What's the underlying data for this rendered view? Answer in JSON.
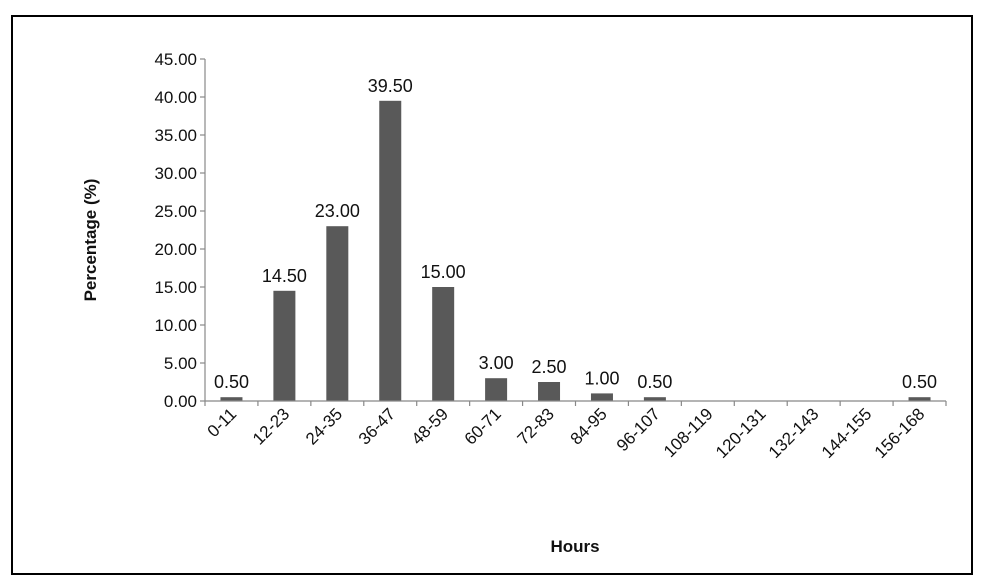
{
  "chart_data": {
    "type": "bar",
    "categories": [
      "0-11",
      "12-23",
      "24-35",
      "36-47",
      "48-59",
      "60-71",
      "72-83",
      "84-95",
      "96-107",
      "108-119",
      "120-131",
      "132-143",
      "144-155",
      "156-168"
    ],
    "values": [
      0.5,
      14.5,
      23.0,
      39.5,
      15.0,
      3.0,
      2.5,
      1.0,
      0.5,
      0,
      0,
      0,
      0,
      0.5
    ],
    "data_labels": [
      "0.50",
      "14.50",
      "23.00",
      "39.50",
      "15.00",
      "3.00",
      "2.50",
      "1.00",
      "0.50",
      "",
      "",
      "",
      "",
      "0.50"
    ],
    "y_ticks": [
      "0.00",
      "5.00",
      "10.00",
      "15.00",
      "20.00",
      "25.00",
      "30.00",
      "35.00",
      "40.00",
      "45.00"
    ],
    "xlabel": "Hours",
    "ylabel": "Percentage (%)",
    "ylim": [
      0,
      45
    ],
    "grid": false,
    "legend": "none",
    "bar_color": "#595959"
  }
}
